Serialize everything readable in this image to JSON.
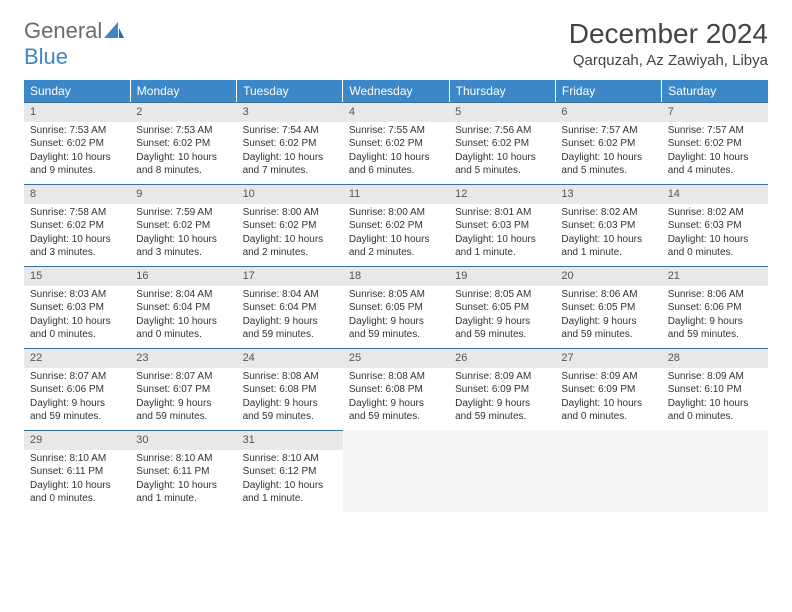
{
  "logo": {
    "word1": "General",
    "word2": "Blue"
  },
  "title": "December 2024",
  "location": "Qarquzah, Az Zawiyah, Libya",
  "colors": {
    "header_bg": "#3b87c8",
    "header_text": "#ffffff",
    "daynum_bg": "#e8e8e8",
    "border": "#3b6fa0",
    "logo_gray": "#6b6b6b",
    "logo_blue": "#3b87c8"
  },
  "weekdays": [
    "Sunday",
    "Monday",
    "Tuesday",
    "Wednesday",
    "Thursday",
    "Friday",
    "Saturday"
  ],
  "weeks": [
    [
      {
        "n": "1",
        "sr": "Sunrise: 7:53 AM",
        "ss": "Sunset: 6:02 PM",
        "dl": "Daylight: 10 hours and 9 minutes."
      },
      {
        "n": "2",
        "sr": "Sunrise: 7:53 AM",
        "ss": "Sunset: 6:02 PM",
        "dl": "Daylight: 10 hours and 8 minutes."
      },
      {
        "n": "3",
        "sr": "Sunrise: 7:54 AM",
        "ss": "Sunset: 6:02 PM",
        "dl": "Daylight: 10 hours and 7 minutes."
      },
      {
        "n": "4",
        "sr": "Sunrise: 7:55 AM",
        "ss": "Sunset: 6:02 PM",
        "dl": "Daylight: 10 hours and 6 minutes."
      },
      {
        "n": "5",
        "sr": "Sunrise: 7:56 AM",
        "ss": "Sunset: 6:02 PM",
        "dl": "Daylight: 10 hours and 5 minutes."
      },
      {
        "n": "6",
        "sr": "Sunrise: 7:57 AM",
        "ss": "Sunset: 6:02 PM",
        "dl": "Daylight: 10 hours and 5 minutes."
      },
      {
        "n": "7",
        "sr": "Sunrise: 7:57 AM",
        "ss": "Sunset: 6:02 PM",
        "dl": "Daylight: 10 hours and 4 minutes."
      }
    ],
    [
      {
        "n": "8",
        "sr": "Sunrise: 7:58 AM",
        "ss": "Sunset: 6:02 PM",
        "dl": "Daylight: 10 hours and 3 minutes."
      },
      {
        "n": "9",
        "sr": "Sunrise: 7:59 AM",
        "ss": "Sunset: 6:02 PM",
        "dl": "Daylight: 10 hours and 3 minutes."
      },
      {
        "n": "10",
        "sr": "Sunrise: 8:00 AM",
        "ss": "Sunset: 6:02 PM",
        "dl": "Daylight: 10 hours and 2 minutes."
      },
      {
        "n": "11",
        "sr": "Sunrise: 8:00 AM",
        "ss": "Sunset: 6:02 PM",
        "dl": "Daylight: 10 hours and 2 minutes."
      },
      {
        "n": "12",
        "sr": "Sunrise: 8:01 AM",
        "ss": "Sunset: 6:03 PM",
        "dl": "Daylight: 10 hours and 1 minute."
      },
      {
        "n": "13",
        "sr": "Sunrise: 8:02 AM",
        "ss": "Sunset: 6:03 PM",
        "dl": "Daylight: 10 hours and 1 minute."
      },
      {
        "n": "14",
        "sr": "Sunrise: 8:02 AM",
        "ss": "Sunset: 6:03 PM",
        "dl": "Daylight: 10 hours and 0 minutes."
      }
    ],
    [
      {
        "n": "15",
        "sr": "Sunrise: 8:03 AM",
        "ss": "Sunset: 6:03 PM",
        "dl": "Daylight: 10 hours and 0 minutes."
      },
      {
        "n": "16",
        "sr": "Sunrise: 8:04 AM",
        "ss": "Sunset: 6:04 PM",
        "dl": "Daylight: 10 hours and 0 minutes."
      },
      {
        "n": "17",
        "sr": "Sunrise: 8:04 AM",
        "ss": "Sunset: 6:04 PM",
        "dl": "Daylight: 9 hours and 59 minutes."
      },
      {
        "n": "18",
        "sr": "Sunrise: 8:05 AM",
        "ss": "Sunset: 6:05 PM",
        "dl": "Daylight: 9 hours and 59 minutes."
      },
      {
        "n": "19",
        "sr": "Sunrise: 8:05 AM",
        "ss": "Sunset: 6:05 PM",
        "dl": "Daylight: 9 hours and 59 minutes."
      },
      {
        "n": "20",
        "sr": "Sunrise: 8:06 AM",
        "ss": "Sunset: 6:05 PM",
        "dl": "Daylight: 9 hours and 59 minutes."
      },
      {
        "n": "21",
        "sr": "Sunrise: 8:06 AM",
        "ss": "Sunset: 6:06 PM",
        "dl": "Daylight: 9 hours and 59 minutes."
      }
    ],
    [
      {
        "n": "22",
        "sr": "Sunrise: 8:07 AM",
        "ss": "Sunset: 6:06 PM",
        "dl": "Daylight: 9 hours and 59 minutes."
      },
      {
        "n": "23",
        "sr": "Sunrise: 8:07 AM",
        "ss": "Sunset: 6:07 PM",
        "dl": "Daylight: 9 hours and 59 minutes."
      },
      {
        "n": "24",
        "sr": "Sunrise: 8:08 AM",
        "ss": "Sunset: 6:08 PM",
        "dl": "Daylight: 9 hours and 59 minutes."
      },
      {
        "n": "25",
        "sr": "Sunrise: 8:08 AM",
        "ss": "Sunset: 6:08 PM",
        "dl": "Daylight: 9 hours and 59 minutes."
      },
      {
        "n": "26",
        "sr": "Sunrise: 8:09 AM",
        "ss": "Sunset: 6:09 PM",
        "dl": "Daylight: 9 hours and 59 minutes."
      },
      {
        "n": "27",
        "sr": "Sunrise: 8:09 AM",
        "ss": "Sunset: 6:09 PM",
        "dl": "Daylight: 10 hours and 0 minutes."
      },
      {
        "n": "28",
        "sr": "Sunrise: 8:09 AM",
        "ss": "Sunset: 6:10 PM",
        "dl": "Daylight: 10 hours and 0 minutes."
      }
    ],
    [
      {
        "n": "29",
        "sr": "Sunrise: 8:10 AM",
        "ss": "Sunset: 6:11 PM",
        "dl": "Daylight: 10 hours and 0 minutes."
      },
      {
        "n": "30",
        "sr": "Sunrise: 8:10 AM",
        "ss": "Sunset: 6:11 PM",
        "dl": "Daylight: 10 hours and 1 minute."
      },
      {
        "n": "31",
        "sr": "Sunrise: 8:10 AM",
        "ss": "Sunset: 6:12 PM",
        "dl": "Daylight: 10 hours and 1 minute."
      },
      null,
      null,
      null,
      null
    ]
  ]
}
